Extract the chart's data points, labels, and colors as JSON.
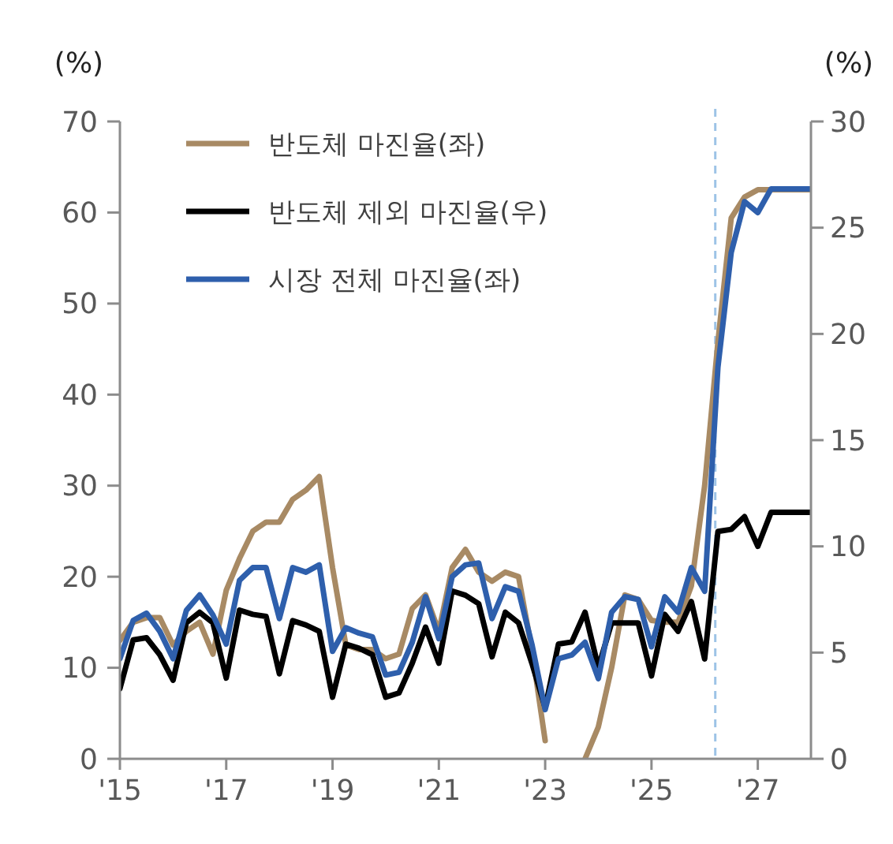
{
  "chart_data": {
    "type": "line",
    "ylabel": "(%)",
    "y2label": "(%)",
    "x": [
      2015,
      2015.25,
      2015.5,
      2015.75,
      2016,
      2016.25,
      2016.5,
      2016.75,
      2017,
      2017.25,
      2017.5,
      2017.75,
      2018,
      2018.25,
      2018.5,
      2018.75,
      2019,
      2019.25,
      2019.5,
      2019.75,
      2020,
      2020.25,
      2020.5,
      2020.75,
      2021,
      2021.25,
      2021.5,
      2021.75,
      2022,
      2022.25,
      2022.5,
      2022.75,
      2023,
      2023.25,
      2023.5,
      2023.75,
      2024,
      2024.25,
      2024.5,
      2024.75,
      2025,
      2025.25,
      2025.5,
      2025.75,
      2026,
      2026.25,
      2026.5,
      2026.75,
      2027,
      2027.25,
      2027.5,
      2027.75,
      2028
    ],
    "series": [
      {
        "name": "반도체 마진율(좌)",
        "color": "#a88a64",
        "values": [
          13,
          15,
          15.5,
          15.5,
          12.5,
          14,
          15,
          11.5,
          18.5,
          22,
          25,
          26,
          26,
          28.5,
          29.5,
          31,
          21,
          12.5,
          12,
          12,
          11,
          11.5,
          16.5,
          18,
          14,
          21,
          23,
          20.5,
          19.5,
          20.5,
          20,
          12,
          2,
          null,
          null,
          0,
          3.5,
          10,
          18,
          17.5,
          15.2,
          15,
          15,
          19,
          30,
          45.8,
          59.4,
          61.7,
          62.5,
          62.5,
          62.5,
          62.5,
          62.5
        ]
      },
      {
        "name": "반도체 제외 마진율(우)",
        "color": "#000000",
        "axis": "y2",
        "values": [
          3.3,
          5.6,
          5.7,
          4.9,
          3.7,
          6.4,
          6.9,
          6.4,
          3.8,
          7,
          6.8,
          6.7,
          4,
          6.5,
          6.3,
          6,
          2.9,
          5.4,
          5.2,
          4.9,
          2.9,
          3.1,
          4.5,
          6.2,
          4.5,
          7.9,
          7.7,
          7.3,
          4.8,
          6.9,
          6.4,
          4.5,
          2.4,
          5.4,
          5.5,
          6.9,
          4.3,
          6.4,
          6.4,
          6.4,
          3.9,
          6.8,
          6,
          7.4,
          4.7,
          10.7,
          10.8,
          11.4,
          10,
          11.6,
          11.6,
          11.6,
          11.6
        ]
      },
      {
        "name": "시장 전체 마진율(좌)",
        "color": "#2e5fac",
        "values": [
          11,
          15.2,
          16,
          14,
          11,
          16.3,
          18,
          15.8,
          12.6,
          19.6,
          21,
          21,
          15.4,
          21,
          20.5,
          21.3,
          11.8,
          14.4,
          13.8,
          13.4,
          9.2,
          9.5,
          12.8,
          17.8,
          13.2,
          20,
          21.3,
          21.5,
          15.4,
          18.9,
          18.4,
          12.6,
          5.4,
          11,
          11.4,
          12.8,
          8.8,
          16.1,
          17.8,
          17.5,
          12.3,
          17.8,
          16.1,
          21,
          18.4,
          43,
          55.6,
          61.2,
          60,
          62.6,
          62.6,
          62.6,
          62.6
        ]
      }
    ],
    "xlim": [
      2015,
      2028
    ],
    "xticks": [
      {
        "value": 2015,
        "label": "'15"
      },
      {
        "value": 2017,
        "label": "'17"
      },
      {
        "value": 2019,
        "label": "'19"
      },
      {
        "value": 2021,
        "label": "'21"
      },
      {
        "value": 2023,
        "label": "'23"
      },
      {
        "value": 2025,
        "label": "'25"
      },
      {
        "value": 2027,
        "label": "'27"
      }
    ],
    "ylim": [
      0,
      70
    ],
    "yticks": [
      0,
      10,
      20,
      30,
      40,
      50,
      60,
      70
    ],
    "y2lim": [
      0,
      30
    ],
    "y2ticks": [
      0,
      5,
      10,
      15,
      20,
      25,
      30
    ],
    "ref_lines": [
      {
        "axis": "x",
        "value": 2026.2,
        "color": "#9dc3e6",
        "line_style": "dashed"
      }
    ],
    "legend": "top left",
    "grid": false,
    "line_style": "solid"
  }
}
